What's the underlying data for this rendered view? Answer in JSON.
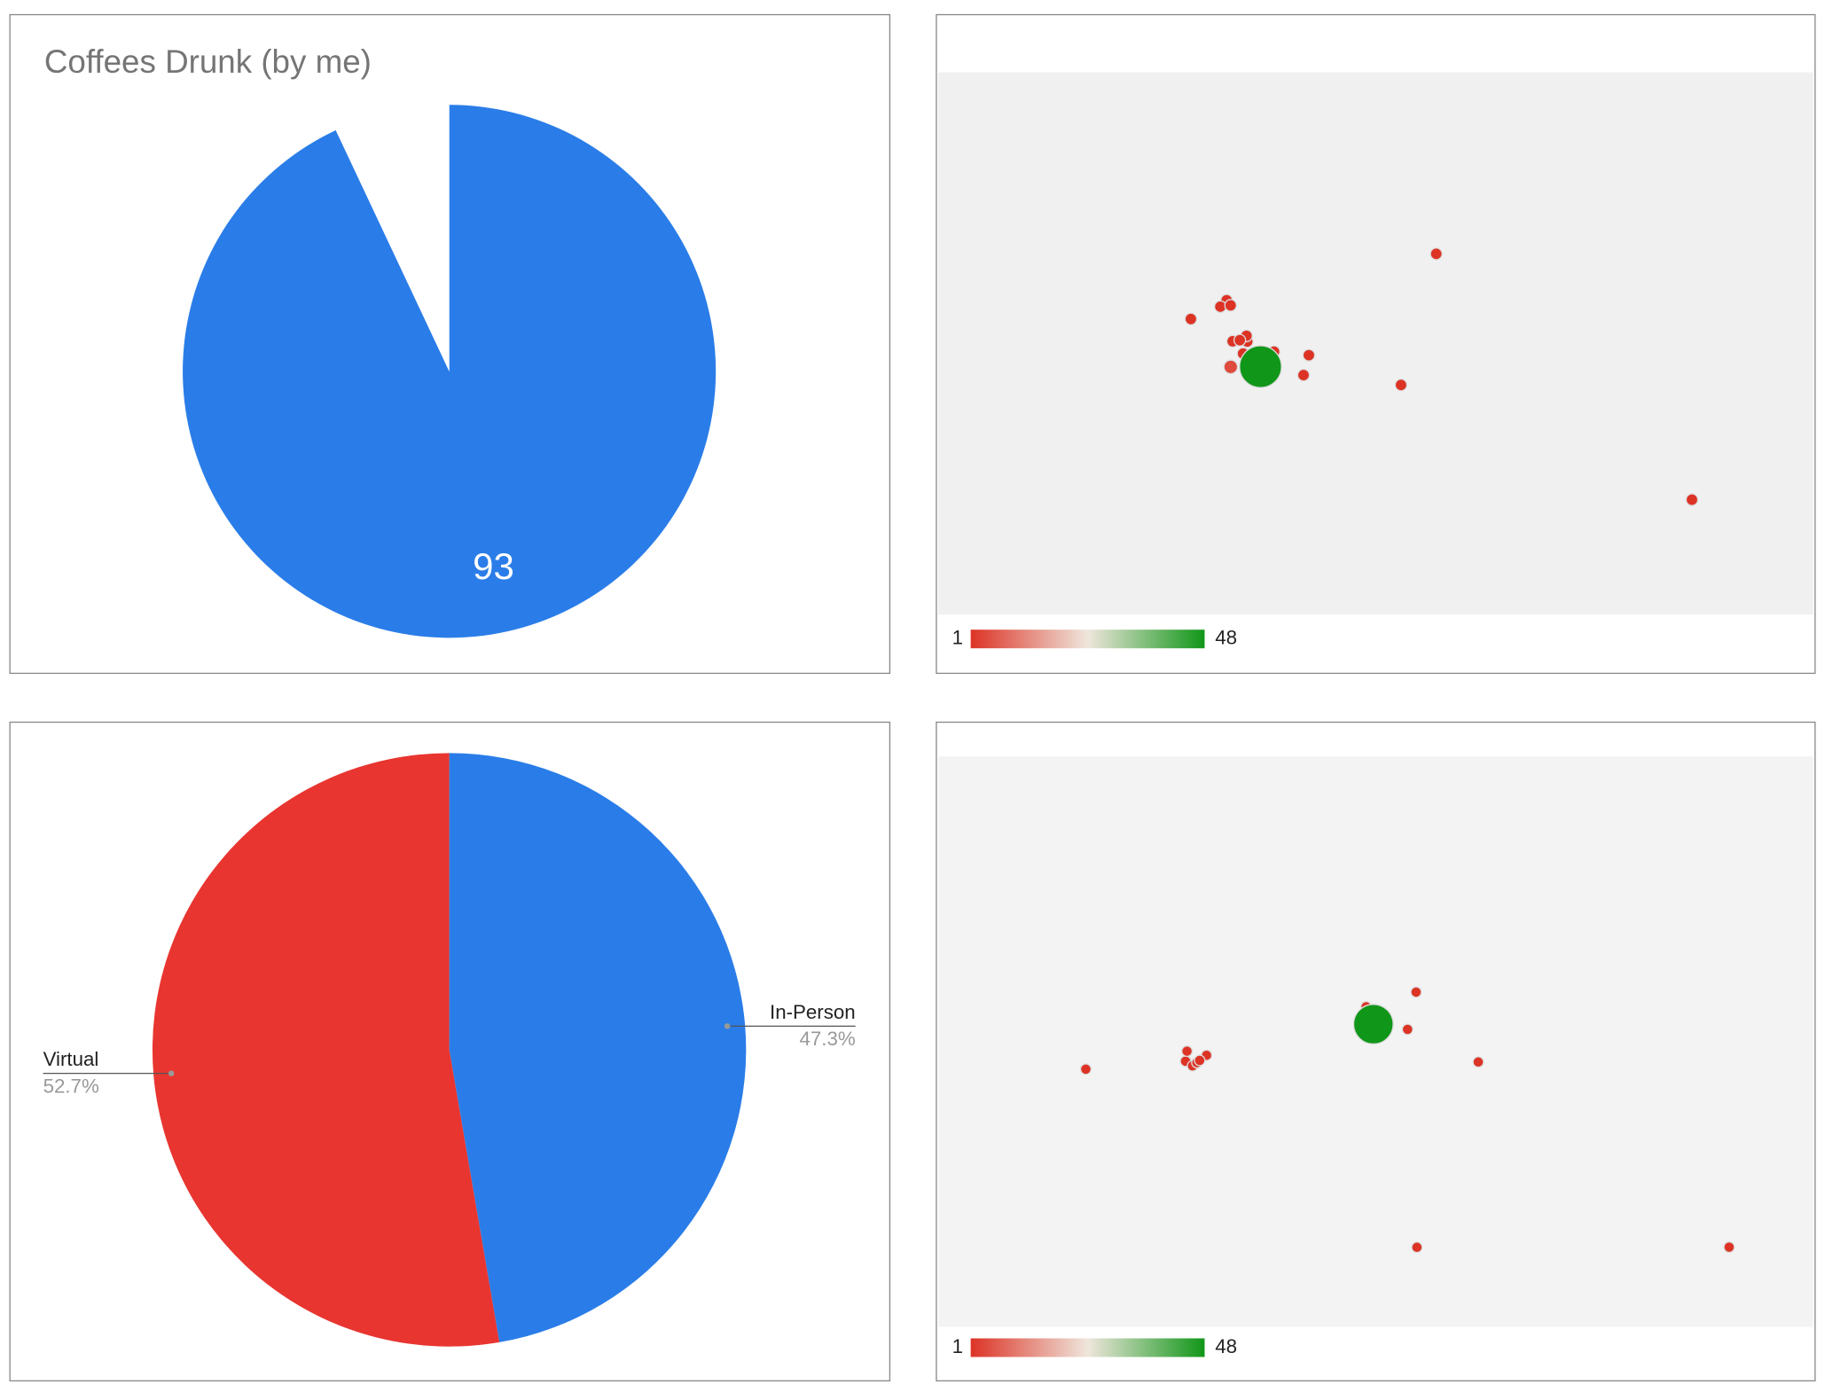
{
  "chart_data": [
    {
      "type": "pie",
      "title": "Coffees Drunk (by me)",
      "values": [
        93,
        7
      ],
      "value_labels": [
        "93",
        null
      ],
      "colors": [
        "#2a7de8",
        "#ffffff"
      ]
    },
    {
      "type": "geo",
      "region": "Europe",
      "colorAxis": {
        "min": 1,
        "max": 48,
        "colors": [
          "#dc3325",
          "#efe6dc",
          "#109618"
        ]
      },
      "markers": [
        {
          "lat": 51.5,
          "lon": -0.1,
          "value": 48
        },
        {
          "lat": 55.95,
          "lon": -3.19,
          "value": 1
        },
        {
          "lat": 55.86,
          "lon": -4.25,
          "value": 1
        },
        {
          "lat": 56.3,
          "lon": -3.6,
          "value": 1
        },
        {
          "lat": 55.0,
          "lon": -7.3,
          "value": 1
        },
        {
          "lat": 53.48,
          "lon": -2.24,
          "value": 1
        },
        {
          "lat": 53.8,
          "lon": -1.55,
          "value": 1
        },
        {
          "lat": 53.38,
          "lon": -1.47,
          "value": 1
        },
        {
          "lat": 53.4,
          "lon": -2.98,
          "value": 1
        },
        {
          "lat": 52.49,
          "lon": -1.9,
          "value": 1
        },
        {
          "lat": 52.2,
          "lon": 0.12,
          "value": 1
        },
        {
          "lat": 51.75,
          "lon": -1.26,
          "value": 1
        },
        {
          "lat": 51.48,
          "lon": -3.18,
          "value": 4
        },
        {
          "lat": 52.63,
          "lon": 1.3,
          "value": 1
        },
        {
          "lat": 50.82,
          "lon": -0.14,
          "value": 1
        },
        {
          "lat": 51.45,
          "lon": -0.97,
          "value": 1
        },
        {
          "lat": 52.37,
          "lon": 4.9,
          "value": 1
        },
        {
          "lat": 50.85,
          "lon": 4.35,
          "value": 1
        },
        {
          "lat": 59.33,
          "lon": 18.07,
          "value": 1
        },
        {
          "lat": 50.08,
          "lon": 14.43,
          "value": 1
        },
        {
          "lat": 40.18,
          "lon": 44.51,
          "value": 1
        }
      ]
    },
    {
      "type": "pie",
      "categories": [
        "In-Person",
        "Virtual"
      ],
      "values": [
        47.3,
        52.7
      ],
      "value_labels": [
        "47.3%",
        "52.7%"
      ],
      "colors": [
        "#2a7de8",
        "#e83530"
      ]
    },
    {
      "type": "geo",
      "region": "world",
      "colorAxis": {
        "min": 1,
        "max": 48,
        "colors": [
          "#dc3325",
          "#efe6dc",
          "#109618"
        ]
      },
      "markers": [
        {
          "lat": 51.5,
          "lon": -0.1,
          "value": 48
        },
        {
          "lat": 55.95,
          "lon": -3.19,
          "value": 1
        },
        {
          "lat": 53.48,
          "lon": -2.24,
          "value": 1
        },
        {
          "lat": 52.49,
          "lon": -1.9,
          "value": 1
        },
        {
          "lat": 51.48,
          "lon": -3.18,
          "value": 4
        },
        {
          "lat": 52.37,
          "lon": 4.9,
          "value": 1
        },
        {
          "lat": 50.85,
          "lon": 4.35,
          "value": 1
        },
        {
          "lat": 59.33,
          "lon": 18.07,
          "value": 1
        },
        {
          "lat": 50.08,
          "lon": 14.43,
          "value": 1
        },
        {
          "lat": 40.18,
          "lon": 44.51,
          "value": 1
        },
        {
          "lat": 40.7,
          "lon": -74.0,
          "value": 1
        },
        {
          "lat": 42.36,
          "lon": -71.06,
          "value": 1
        },
        {
          "lat": 43.65,
          "lon": -79.38,
          "value": 1
        },
        {
          "lat": 39.95,
          "lon": -75.17,
          "value": 1
        },
        {
          "lat": 38.9,
          "lon": -77.04,
          "value": 1
        },
        {
          "lat": 40.44,
          "lon": -80.0,
          "value": 1
        },
        {
          "lat": 37.77,
          "lon": -122.42,
          "value": 1
        },
        {
          "lat": -33.92,
          "lon": 18.42,
          "value": 1
        },
        {
          "lat": -33.87,
          "lon": 151.21,
          "value": 1
        }
      ]
    }
  ]
}
